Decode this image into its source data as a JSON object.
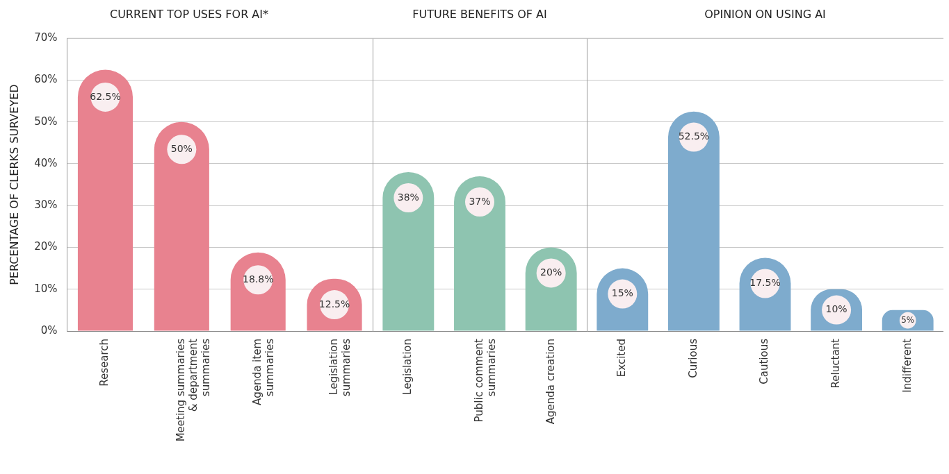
{
  "chart_data": [
    {
      "type": "bar",
      "title": "CURRENT TOP USES FOR AI*",
      "ylabel": "PERCENTAGE OF CLERKS SURVEYED",
      "categories": [
        "Research",
        "Meeting summaries & department summaries",
        "Agenda item summaries",
        "Legislation summaries"
      ],
      "values": [
        62.5,
        50,
        18.8,
        12.5
      ],
      "value_labels": [
        "62.5%",
        "50%",
        "18.8%",
        "12.5%"
      ],
      "color": "#e8828f",
      "ylim": [
        0,
        70
      ],
      "yticks": [
        {
          "value": 0,
          "label": "0%"
        },
        {
          "value": 10,
          "label": "10%"
        },
        {
          "value": 20,
          "label": "20%"
        },
        {
          "value": 30,
          "label": "30%"
        },
        {
          "value": 40,
          "label": "40%"
        },
        {
          "value": 50,
          "label": "50%"
        },
        {
          "value": 60,
          "label": "60%"
        },
        {
          "value": 70,
          "label": "70%"
        }
      ],
      "grid": "y"
    },
    {
      "type": "bar",
      "title": "FUTURE BENEFITS OF AI",
      "categories": [
        "Legislation",
        "Public comment summaries",
        "Agenda creation"
      ],
      "values": [
        38,
        37,
        20
      ],
      "value_labels": [
        "38%",
        "37%",
        "20%"
      ],
      "color": "#8ec4b0",
      "ylim": [
        0,
        70
      ],
      "yticks": [
        0,
        10,
        20,
        30,
        40,
        50,
        60,
        70
      ],
      "grid": "y",
      "tick_labels": "x"
    },
    {
      "type": "bar",
      "title": "OPINION ON USING AI",
      "categories": [
        "Excited",
        "Curious",
        "Cautious",
        "Reluctant",
        "Indifferent"
      ],
      "values": [
        15,
        52.5,
        17.5,
        10,
        5
      ],
      "value_labels": [
        "15%",
        "52.5%",
        "17.5%",
        "10%",
        "5%"
      ],
      "color": "#7eabcd",
      "ylim": [
        0,
        70
      ],
      "yticks": [
        0,
        10,
        20,
        30,
        40,
        50,
        60,
        70
      ],
      "grid": "y",
      "tick_labels": "x"
    }
  ]
}
